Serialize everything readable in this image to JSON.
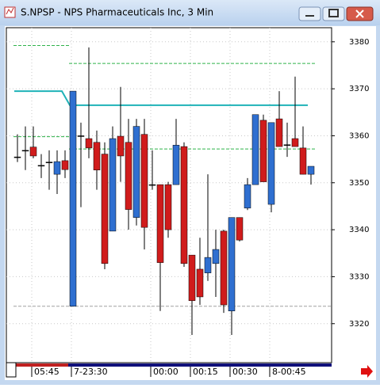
{
  "window": {
    "title": "S.NPSP - NPS Pharmaceuticals Inc, 3 Min"
  },
  "chart_data": {
    "type": "candlestick",
    "open": [
      3355.5,
      3356.9,
      3357.6,
      3353.7,
      3354.4,
      3351.8,
      3354.7,
      3323.7,
      3360.0,
      3359.4,
      3358.6,
      3356.1,
      3339.7,
      3359.9,
      3358.6,
      3342.6,
      3360.3,
      3349.6,
      3349.6,
      3349.6,
      3349.6,
      3357.7,
      3334.6,
      3331.6,
      3330.8,
      3332.8,
      3339.7,
      3322.7,
      3342.6,
      3344.6,
      3349.6,
      3363.3,
      3345.4,
      3363.6,
      3358.1,
      3359.4,
      3357.4,
      3351.8
    ],
    "high": [
      3360.3,
      3362.0,
      3362.0,
      3356.1,
      3356.9,
      3356.9,
      3356.9,
      3369.5,
      3362.8,
      3378.8,
      3361.1,
      3358.6,
      3362.0,
      3370.4,
      3363.6,
      3363.6,
      3363.6,
      3356.9,
      3349.6,
      3350.2,
      3363.6,
      3358.6,
      3334.6,
      3338.3,
      3351.8,
      3340.0,
      3340.0,
      3342.6,
      3342.6,
      3351.0,
      3364.5,
      3364.5,
      3362.8,
      3369.5,
      3362.8,
      3372.6,
      3362.0,
      3353.5
    ],
    "low": [
      3354.4,
      3352.7,
      3355.2,
      3351.0,
      3348.5,
      3347.6,
      3351.0,
      3323.7,
      3344.8,
      3355.2,
      3348.5,
      3331.6,
      3339.7,
      3350.2,
      3340.0,
      3340.9,
      3335.8,
      3348.5,
      3322.7,
      3338.3,
      3349.6,
      3332.1,
      3317.6,
      3324.0,
      3329.1,
      3325.7,
      3322.3,
      3317.6,
      3337.5,
      3344.2,
      3349.6,
      3350.2,
      3343.7,
      3357.7,
      3355.5,
      3357.7,
      3351.8,
      3349.6
    ],
    "close": [
      3355.5,
      3356.9,
      3355.7,
      3353.7,
      3354.4,
      3354.5,
      3352.8,
      3369.5,
      3360.0,
      3357.4,
      3352.7,
      3332.8,
      3359.4,
      3355.7,
      3344.3,
      3362.0,
      3340.5,
      3349.6,
      3333.0,
      3340.0,
      3358.0,
      3332.8,
      3324.9,
      3325.7,
      3334.1,
      3335.8,
      3324.0,
      3342.6,
      3337.8,
      3349.6,
      3364.5,
      3350.2,
      3362.8,
      3357.7,
      3358.1,
      3357.7,
      3351.8,
      3353.5
    ],
    "up_color": "#2f6fd0",
    "down_color": "#d01c1c",
    "flat_color": "#000000",
    "trend_line": {
      "color": "#1fb2b8",
      "values": [
        3369.5,
        3369.5,
        3369.5,
        3369.5,
        3369.5,
        3369.5,
        3369.5,
        3366.5,
        3366.5,
        3366.5,
        3366.5,
        3366.5,
        3366.5,
        3366.5,
        3366.5,
        3366.5,
        3366.5,
        3366.5,
        3366.5,
        3366.5,
        3366.5,
        3366.5,
        3366.5,
        3366.5,
        3366.5,
        3366.5,
        3366.5,
        3366.5,
        3366.5,
        3366.5,
        3366.5,
        3366.5,
        3366.5,
        3366.5,
        3366.5,
        3366.5,
        3366.5,
        3366.5
      ]
    },
    "levels": [
      {
        "value": 3379.2,
        "start": 0,
        "end": 6,
        "color": "#2fb34a"
      },
      {
        "value": 3375.4,
        "start": 7,
        "end": 37,
        "color": "#2fb34a"
      },
      {
        "value": 3359.8,
        "start": 0,
        "end": 6,
        "color": "#2fb34a"
      },
      {
        "value": 3357.2,
        "start": 7,
        "end": 37,
        "color": "#2fb34a"
      },
      {
        "value": 3323.7,
        "start": 0,
        "end": 39,
        "color": "#a0a0a0"
      }
    ],
    "ylim": [
      3311.7,
      3383
    ],
    "yticks": [
      3320,
      3330,
      3340,
      3350,
      3360,
      3370,
      3380
    ],
    "xticks": [
      {
        "value": 2,
        "label": "05:45"
      },
      {
        "value": 7,
        "label": "7-23:30"
      },
      {
        "value": 17,
        "label": "00:00"
      },
      {
        "value": 22,
        "label": "00:15"
      },
      {
        "value": 27,
        "label": "00:30"
      },
      {
        "value": 32,
        "label": "8-00:45"
      }
    ],
    "grid": true
  }
}
